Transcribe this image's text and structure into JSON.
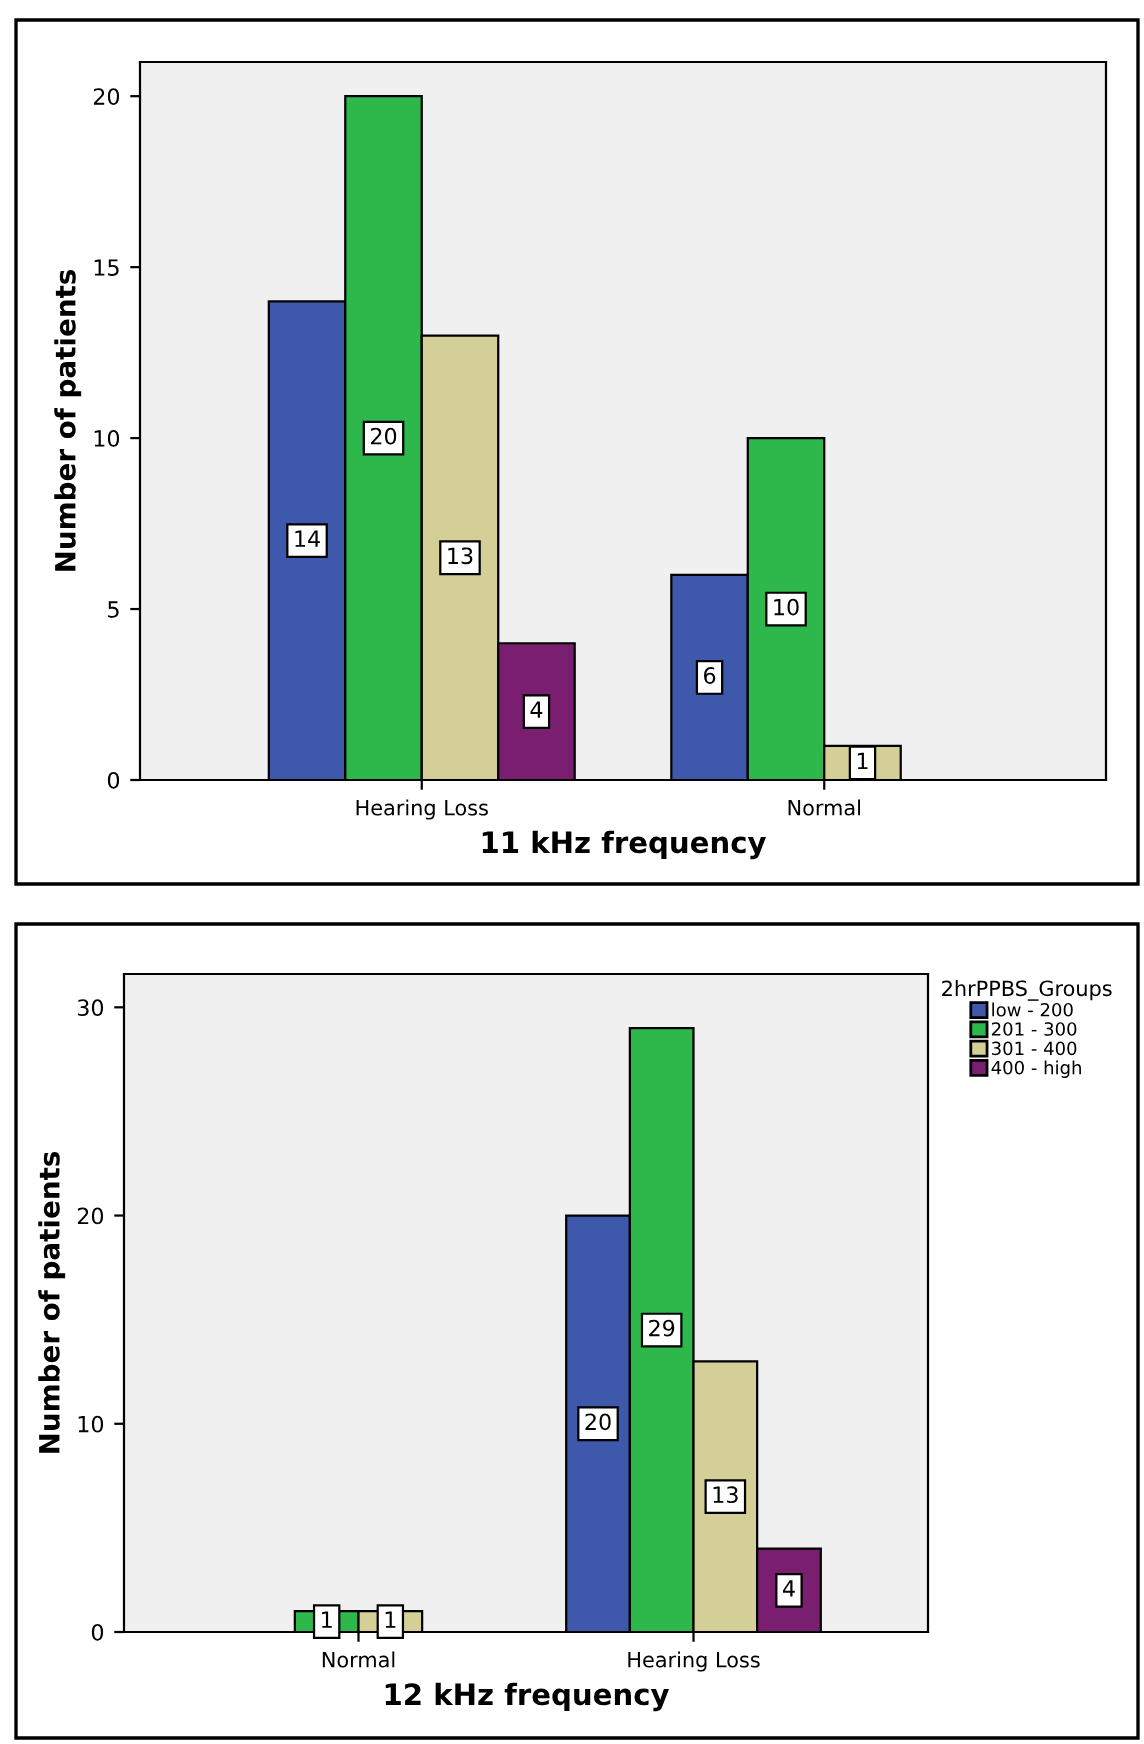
{
  "chart_data": [
    {
      "type": "bar",
      "xlabel": "11 kHz frequency",
      "ylabel": "Number of patients",
      "categories": [
        "Hearing Loss",
        "Normal"
      ],
      "series": [
        {
          "color": "#3e58ac",
          "values": [
            14,
            6
          ]
        },
        {
          "color": "#2eb84b",
          "values": [
            20,
            10
          ]
        },
        {
          "color": "#d4cf96",
          "values": [
            13,
            1
          ]
        },
        {
          "color": "#7a1f6f",
          "values": [
            4,
            null
          ]
        }
      ],
      "ylim": [
        0,
        21
      ],
      "yticks": [
        0,
        5,
        10,
        15,
        20
      ],
      "grid": false,
      "legend": false,
      "data_labels": true
    },
    {
      "type": "bar",
      "xlabel": "12 kHz frequency",
      "ylabel": "Number of patients",
      "categories": [
        "Normal",
        "Hearing Loss"
      ],
      "legend_title": "2hrPPBS_Groups",
      "series": [
        {
          "name": "low - 200",
          "color": "#3e58ac",
          "values": [
            null,
            20
          ]
        },
        {
          "name": "201 - 300",
          "color": "#2eb84b",
          "values": [
            1,
            29
          ]
        },
        {
          "name": "301 - 400",
          "color": "#d4cf96",
          "values": [
            1,
            13
          ]
        },
        {
          "name": "400 - high",
          "color": "#7a1f6f",
          "values": [
            null,
            4
          ]
        }
      ],
      "ylim": [
        0,
        31.6
      ],
      "yticks": [
        0,
        10,
        20,
        30
      ],
      "grid": false,
      "legend": "right",
      "data_labels": true
    }
  ]
}
